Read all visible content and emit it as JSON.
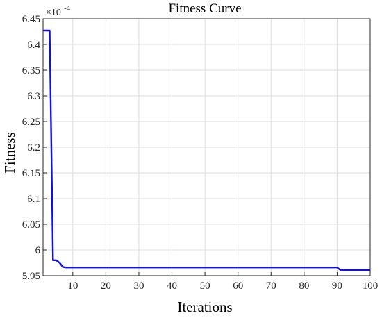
{
  "chart_data": {
    "type": "line",
    "title": "Fitness Curve",
    "xlabel": "Iterations",
    "ylabel": "Fitness",
    "y_exponent_label": "×10",
    "y_exponent_power": "-4",
    "xlim": [
      1,
      100
    ],
    "ylim": [
      5.95,
      6.45
    ],
    "xticks": [
      10,
      20,
      30,
      40,
      50,
      60,
      70,
      80,
      90,
      100
    ],
    "xtick_labels": [
      "10",
      "20",
      "30",
      "40",
      "50",
      "60",
      "70",
      "80",
      "90",
      "100"
    ],
    "yticks": [
      5.95,
      6.0,
      6.05,
      6.1,
      6.15,
      6.2,
      6.25,
      6.3,
      6.35,
      6.4,
      6.45
    ],
    "ytick_labels": [
      "5.95",
      "6",
      "6.05",
      "6.1",
      "6.15",
      "6.2",
      "6.25",
      "6.3",
      "6.35",
      "6.4",
      "6.45"
    ],
    "grid": true,
    "color": "#1010e6",
    "series": [
      {
        "x": [
          1,
          3,
          4,
          5,
          6,
          7,
          8,
          90,
          91,
          100
        ],
        "y": [
          6.427,
          6.427,
          5.98,
          5.98,
          5.975,
          5.967,
          5.966,
          5.966,
          5.961,
          5.961
        ]
      }
    ]
  }
}
